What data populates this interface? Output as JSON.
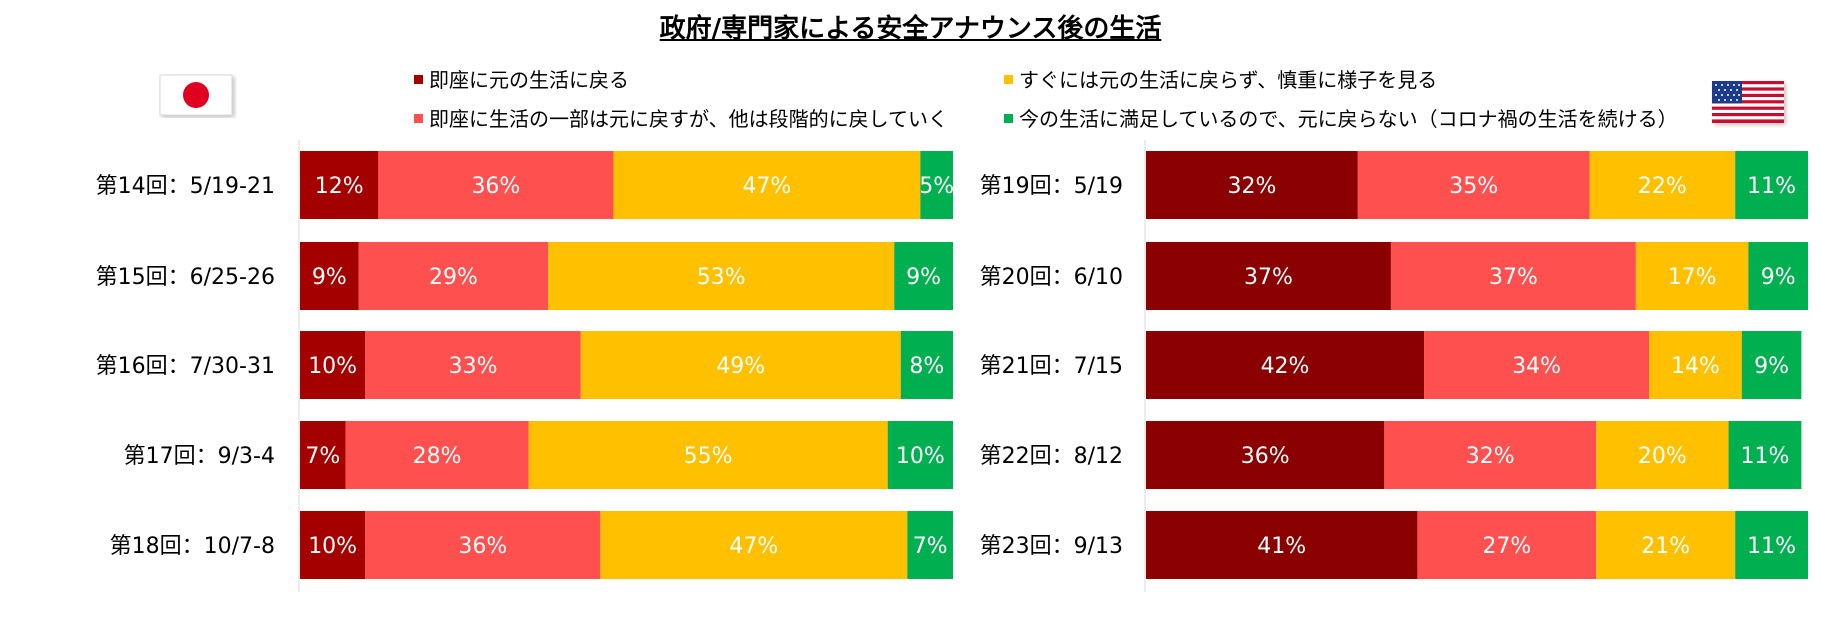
{
  "title": "政府/専門家による安全アナウンス後の生活",
  "legend": [
    {
      "label": "即座に元の生活に戻る",
      "color": "#a50000"
    },
    {
      "label": "即座に生活の一部は元に戻すが、他は段階的に戻していく",
      "color": "#ff5050"
    },
    {
      "label": "すぐには元の生活に戻らず、慎重に様子を見る",
      "color": "#ffc000"
    },
    {
      "label": "今の生活に満足しているので、元に戻らない（コロナ禍の生活を続ける）",
      "color": "#00b050"
    }
  ],
  "flags": {
    "left": "japan-flag",
    "right": "usa-flag"
  },
  "chart_data": [
    {
      "type": "bar",
      "orientation": "horizontal",
      "stacked": true,
      "country": "Japan",
      "categories": [
        "第14回：5/19-21",
        "第15回：6/25-26",
        "第16回：7/30-31",
        "第17回：9/3-4",
        "第18回：10/7-8"
      ],
      "series": [
        {
          "name": "即座に元の生活に戻る",
          "color": "#a50000",
          "values": [
            12,
            9,
            10,
            7,
            10
          ]
        },
        {
          "name": "即座に生活の一部は元に戻すが、他は段階的に戻していく",
          "color": "#ff5050",
          "values": [
            36,
            29,
            33,
            28,
            36
          ]
        },
        {
          "name": "すぐには元の生活に戻らず、慎重に様子を見る",
          "color": "#ffc000",
          "values": [
            47,
            53,
            49,
            55,
            47
          ]
        },
        {
          "name": "今の生活に満足しているので、元に戻らない（コロナ禍の生活を続ける）",
          "color": "#00b050",
          "values": [
            5,
            9,
            8,
            10,
            7
          ]
        }
      ],
      "xlim": [
        0,
        100
      ],
      "value_suffix": "%"
    },
    {
      "type": "bar",
      "orientation": "horizontal",
      "stacked": true,
      "country": "USA",
      "categories": [
        "第19回：5/19",
        "第20回：6/10",
        "第21回：7/15",
        "第22回：8/12",
        "第23回：9/13"
      ],
      "series": [
        {
          "name": "即座に元の生活に戻る",
          "color": "#8b0000",
          "values": [
            32,
            37,
            42,
            36,
            41
          ]
        },
        {
          "name": "即座に生活の一部は元に戻すが、他は段階的に戻していく",
          "color": "#ff5050",
          "values": [
            35,
            37,
            34,
            32,
            27
          ]
        },
        {
          "name": "すぐには元の生活に戻らず、慎重に様子を見る",
          "color": "#ffc000",
          "values": [
            22,
            17,
            14,
            20,
            21
          ]
        },
        {
          "name": "今の生活に満足しているので、元に戻らない（コロナ禍の生活を続ける）",
          "color": "#00b050",
          "values": [
            11,
            9,
            9,
            11,
            11
          ]
        }
      ],
      "xlim": [
        0,
        100
      ],
      "value_suffix": "%"
    }
  ]
}
